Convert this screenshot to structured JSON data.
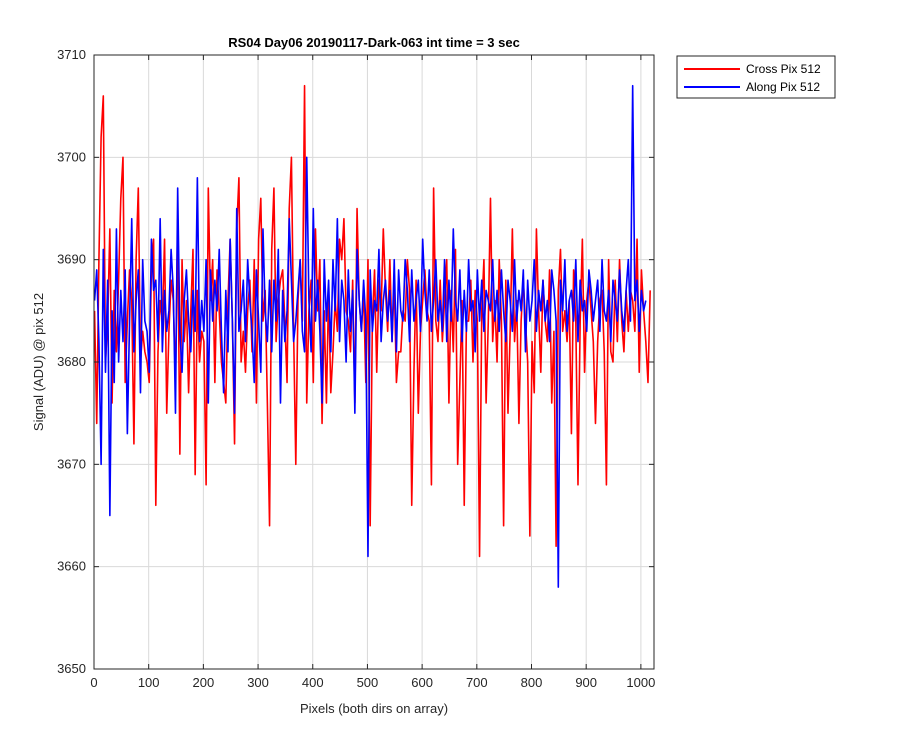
{
  "chart_data": {
    "type": "line",
    "title": "RS04 Day06 20190117-Dark-063 int time = 3 sec",
    "xlabel": "Pixels (both dirs on array)",
    "ylabel": "Signal (ADU) @ pix 512",
    "xlim": [
      0,
      1024
    ],
    "ylim": [
      3650,
      3710
    ],
    "xticks": [
      0,
      100,
      200,
      300,
      400,
      500,
      600,
      700,
      800,
      900,
      1000
    ],
    "yticks": [
      3650,
      3660,
      3670,
      3680,
      3690,
      3700,
      3710
    ],
    "grid": true,
    "legend_position": "outside-top-right",
    "series": [
      {
        "name": "Cross Pix 512",
        "color": "#ff0000",
        "x_start": 1,
        "x_step": 4,
        "values": [
          3685,
          3674,
          3690,
          3702,
          3706,
          3680,
          3684,
          3693,
          3676,
          3687,
          3681,
          3688,
          3696,
          3700,
          3678,
          3684,
          3689,
          3686,
          3672,
          3690,
          3697,
          3680,
          3683,
          3681,
          3680,
          3678,
          3689,
          3692,
          3666,
          3681,
          3686,
          3684,
          3692,
          3675,
          3683,
          3688,
          3686,
          3678,
          3694,
          3671,
          3690,
          3682,
          3686,
          3677,
          3685,
          3691,
          3669,
          3687,
          3680,
          3683,
          3682,
          3668,
          3697,
          3686,
          3690,
          3678,
          3689,
          3685,
          3680,
          3678,
          3676,
          3686,
          3692,
          3684,
          3672,
          3693,
          3698,
          3680,
          3683,
          3679,
          3685,
          3688,
          3681,
          3690,
          3676,
          3692,
          3696,
          3684,
          3687,
          3676,
          3664,
          3691,
          3697,
          3682,
          3686,
          3688,
          3689,
          3684,
          3678,
          3695,
          3700,
          3683,
          3670,
          3686,
          3690,
          3684,
          3707,
          3676,
          3685,
          3688,
          3678,
          3693,
          3685,
          3690,
          3674,
          3685,
          3676,
          3687,
          3677,
          3681,
          3686,
          3683,
          3692,
          3690,
          3694,
          3685,
          3684,
          3681,
          3688,
          3676,
          3695,
          3686,
          3683,
          3687,
          3678,
          3690,
          3664,
          3684,
          3689,
          3679,
          3688,
          3685,
          3693,
          3687,
          3683,
          3690,
          3682,
          3688,
          3678,
          3681,
          3681,
          3685,
          3684,
          3690,
          3687,
          3666,
          3679,
          3688,
          3675,
          3683,
          3686,
          3689,
          3685,
          3684,
          3668,
          3697,
          3684,
          3682,
          3688,
          3682,
          3686,
          3690,
          3676,
          3687,
          3681,
          3691,
          3670,
          3678,
          3686,
          3666,
          3684,
          3684,
          3688,
          3680,
          3687,
          3684,
          3661,
          3685,
          3690,
          3676,
          3684,
          3696,
          3682,
          3686,
          3680,
          3690,
          3684,
          3664,
          3688,
          3675,
          3683,
          3693,
          3682,
          3686,
          3674,
          3684,
          3688,
          3684,
          3680,
          3663,
          3682,
          3677,
          3693,
          3685,
          3679,
          3688,
          3684,
          3682,
          3689,
          3676,
          3683,
          3662,
          3687,
          3691,
          3683,
          3685,
          3682,
          3686,
          3673,
          3689,
          3684,
          3668,
          3684,
          3692,
          3679,
          3686,
          3688,
          3685,
          3682,
          3674,
          3682,
          3686,
          3687,
          3681,
          3668,
          3690,
          3681,
          3680,
          3688,
          3682,
          3690,
          3684,
          3681,
          3687,
          3683,
          3687,
          3686,
          3683,
          3692,
          3679,
          3689,
          3685,
          3682,
          3678,
          3687
        ]
      },
      {
        "name": "Along Pix 512",
        "color": "#0000ff",
        "x_start": 1,
        "x_step": 4,
        "values": [
          3686,
          3689,
          3682,
          3670,
          3691,
          3679,
          3688,
          3665,
          3685,
          3678,
          3693,
          3680,
          3687,
          3682,
          3689,
          3673,
          3684,
          3694,
          3681,
          3686,
          3689,
          3677,
          3690,
          3684,
          3683,
          3679,
          3692,
          3687,
          3688,
          3682,
          3694,
          3681,
          3687,
          3683,
          3685,
          3691,
          3687,
          3675,
          3697,
          3683,
          3679,
          3686,
          3689,
          3684,
          3681,
          3687,
          3683,
          3698,
          3682,
          3686,
          3683,
          3690,
          3676,
          3689,
          3684,
          3688,
          3685,
          3691,
          3683,
          3677,
          3687,
          3681,
          3692,
          3684,
          3675,
          3695,
          3683,
          3685,
          3688,
          3682,
          3690,
          3686,
          3683,
          3678,
          3689,
          3684,
          3679,
          3693,
          3685,
          3682,
          3688,
          3681,
          3688,
          3684,
          3691,
          3676,
          3687,
          3682,
          3685,
          3694,
          3688,
          3682,
          3684,
          3687,
          3690,
          3683,
          3681,
          3700,
          3686,
          3681,
          3695,
          3684,
          3688,
          3683,
          3676,
          3690,
          3684,
          3688,
          3681,
          3690,
          3685,
          3694,
          3682,
          3688,
          3686,
          3680,
          3689,
          3683,
          3687,
          3675,
          3691,
          3686,
          3683,
          3688,
          3684,
          3661,
          3689,
          3683,
          3686,
          3685,
          3691,
          3682,
          3686,
          3688,
          3684,
          3687,
          3682,
          3690,
          3681,
          3689,
          3685,
          3684,
          3690,
          3687,
          3682,
          3689,
          3684,
          3686,
          3688,
          3683,
          3692,
          3687,
          3684,
          3689,
          3683,
          3686,
          3690,
          3684,
          3686,
          3683,
          3690,
          3682,
          3688,
          3684,
          3693,
          3686,
          3684,
          3689,
          3682,
          3687,
          3683,
          3690,
          3685,
          3686,
          3681,
          3689,
          3684,
          3688,
          3683,
          3687,
          3686,
          3685,
          3690,
          3684,
          3687,
          3683,
          3689,
          3685,
          3682,
          3688,
          3686,
          3683,
          3690,
          3684,
          3687,
          3685,
          3689,
          3681,
          3688,
          3684,
          3686,
          3690,
          3683,
          3687,
          3685,
          3688,
          3684,
          3686,
          3682,
          3689,
          3687,
          3684,
          3658,
          3688,
          3685,
          3690,
          3683,
          3686,
          3687,
          3684,
          3690,
          3682,
          3688,
          3685,
          3686,
          3683,
          3689,
          3687,
          3684,
          3686,
          3688,
          3683,
          3690,
          3685,
          3684,
          3687,
          3682,
          3688,
          3686,
          3684,
          3689,
          3685,
          3683,
          3687,
          3690,
          3684,
          3707,
          3686,
          3688,
          3683,
          3687,
          3685,
          3686
        ]
      }
    ]
  }
}
